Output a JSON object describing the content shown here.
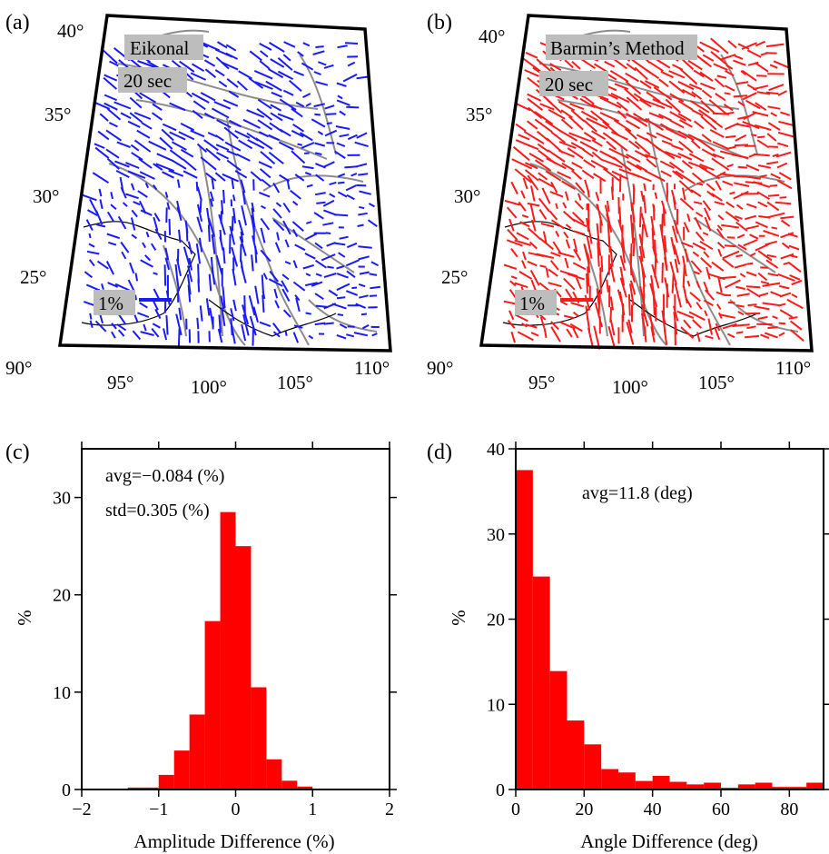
{
  "colors": {
    "eikonal_vectors": "#1a1aff",
    "barmin_vectors": "#ff1a1a",
    "histogram_fill": "#ff0000",
    "fault_lines": "#8c8c8c",
    "badge_background": "#bdbdbd"
  },
  "panel_a": {
    "letter": "(a)",
    "method_label": "Eikonal",
    "period_label": "20 sec",
    "scale_label": "1%",
    "lat_ticks": [
      "40°",
      "35°",
      "30°",
      "25°"
    ],
    "lon_ticks": [
      "90°",
      "95°",
      "100°",
      "105°",
      "110°"
    ]
  },
  "panel_b": {
    "letter": "(b)",
    "method_label": "Barmin’s Method",
    "period_label": "20 sec",
    "scale_label": "1%",
    "lat_ticks": [
      "40°",
      "35°",
      "30°",
      "25°"
    ],
    "lon_ticks": [
      "90°",
      "95°",
      "100°",
      "105°",
      "110°"
    ]
  },
  "panel_c": {
    "letter": "(c)",
    "avg_text": "avg=−0.084 (%)",
    "std_text": "std=0.305 (%)"
  },
  "panel_d": {
    "letter": "(d)",
    "avg_text": "avg=11.8 (deg)"
  },
  "chart_data": [
    {
      "type": "bar",
      "panel": "(c)",
      "xlabel": "Amplitude Difference (%)",
      "ylabel": "%",
      "xlim": [
        -2,
        2
      ],
      "ylim": [
        0,
        35
      ],
      "xticks": [
        -2,
        -1,
        0,
        1,
        2
      ],
      "xtick_labels": [
        "−2",
        "−1",
        "0",
        "1",
        "2"
      ],
      "yticks": [
        0,
        10,
        20,
        30
      ],
      "ytick_labels": [
        "0",
        "10",
        "20",
        "30"
      ],
      "bin_width": 0.2,
      "bin_starts": [
        -1.4,
        -1.2,
        -1.0,
        -0.8,
        -0.6,
        -0.4,
        -0.2,
        0.0,
        0.2,
        0.4,
        0.6,
        0.8
      ],
      "values": [
        0.2,
        0.2,
        1.5,
        4.0,
        7.7,
        17.3,
        28.5,
        25.0,
        10.5,
        3.1,
        0.9,
        0.3
      ]
    },
    {
      "type": "bar",
      "panel": "(d)",
      "xlabel": "Angle Difference (deg)",
      "ylabel": "%",
      "xlim": [
        0,
        90
      ],
      "ylim": [
        0,
        40
      ],
      "xticks": [
        0,
        20,
        40,
        60,
        80
      ],
      "xtick_labels": [
        "0",
        "20",
        "40",
        "60",
        "80"
      ],
      "yticks": [
        0,
        10,
        20,
        30,
        40
      ],
      "ytick_labels": [
        "0",
        "10",
        "20",
        "30",
        "40"
      ],
      "bin_width": 5,
      "bin_starts": [
        0,
        5,
        10,
        15,
        20,
        25,
        30,
        35,
        40,
        45,
        50,
        55,
        60,
        65,
        70,
        75,
        80,
        85
      ],
      "values": [
        37.5,
        25.0,
        13.9,
        8.1,
        5.3,
        2.4,
        2.0,
        1.0,
        1.6,
        0.9,
        0.6,
        0.8,
        0.2,
        0.6,
        0.8,
        0.3,
        0.3,
        0.8
      ]
    }
  ]
}
